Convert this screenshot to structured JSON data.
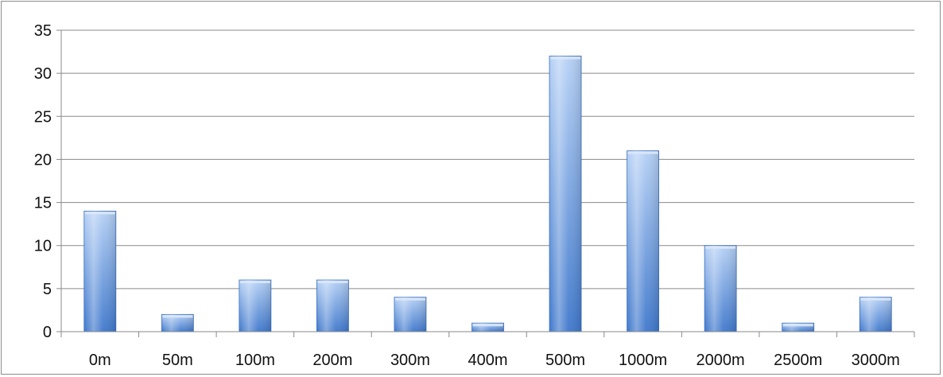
{
  "chart_data": {
    "type": "bar",
    "title": "",
    "xlabel": "",
    "ylabel": "",
    "categories": [
      "0m",
      "50m",
      "100m",
      "200m",
      "300m",
      "400m",
      "500m",
      "1000m",
      "2000m",
      "2500m",
      "3000m"
    ],
    "values": [
      14,
      2,
      6,
      6,
      4,
      1,
      32,
      21,
      10,
      1,
      4
    ],
    "ylim": [
      0,
      35
    ],
    "yticks": [
      "0",
      "5",
      "10",
      "15",
      "20",
      "25",
      "30",
      "35"
    ],
    "grid": true,
    "legend": "none",
    "bar_color": "#5b8fd9",
    "bar_color_light": "#b5d0f5",
    "bar_color_dark": "#3f78cc"
  }
}
